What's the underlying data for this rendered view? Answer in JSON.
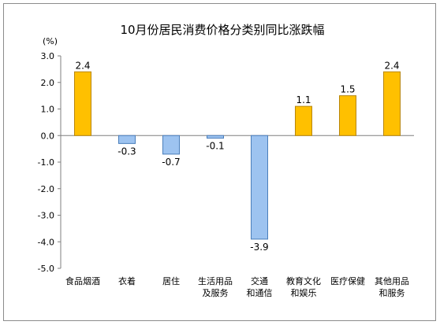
{
  "chart_data": {
    "type": "bar",
    "title": "10月份居民消费价格分类别同比涨跌幅",
    "unit": "(%)",
    "categories": [
      [
        "食品烟酒"
      ],
      [
        "衣着"
      ],
      [
        "居住"
      ],
      [
        "生活用品",
        "及服务"
      ],
      [
        "交通",
        "和通信"
      ],
      [
        "教育文化",
        "和娱乐"
      ],
      [
        "医疗保健"
      ],
      [
        "其他用品",
        "和服务"
      ]
    ],
    "values": [
      2.4,
      -0.3,
      -0.7,
      -0.1,
      -3.9,
      1.1,
      1.5,
      2.4
    ],
    "value_labels": [
      "2.4",
      "-0.3",
      "-0.7",
      "-0.1",
      "-3.9",
      "1.1",
      "1.5",
      "2.4"
    ],
    "ylim": [
      -5.0,
      3.0
    ],
    "yticks": [
      "3.0",
      "2.0",
      "1.0",
      "0.0",
      "-1.0",
      "-2.0",
      "-3.0",
      "-4.0",
      "-5.0"
    ],
    "ytick_values": [
      3,
      2,
      1,
      0,
      -1,
      -2,
      -3,
      -4,
      -5
    ],
    "grid": false,
    "colors": {
      "positive_fill": "#FFC000",
      "positive_stroke": "#B8860B",
      "negative_fill": "#9DC3F0",
      "negative_stroke": "#4A7EBB",
      "axis": "#7f7f7f"
    }
  }
}
